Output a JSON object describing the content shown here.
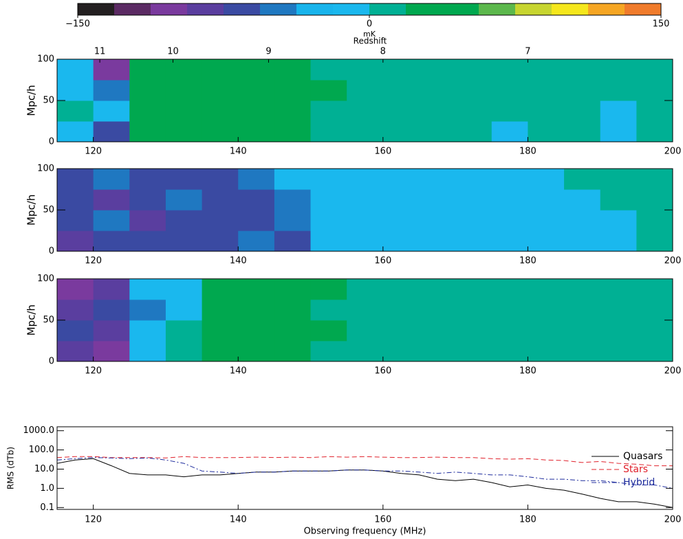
{
  "chart_data": [
    {
      "type": "colorbar",
      "label": "mK",
      "clim": [
        -150,
        150
      ],
      "ticks": [
        {
          "value": -150,
          "label": "−150"
        },
        0,
        150
      ],
      "colors": [
        "#231f20",
        "#5b2a63",
        "#7a3a9e",
        "#5a3e9f",
        "#3a4aa2",
        "#1f78c1",
        "#18b4ec",
        "#1ab8ee",
        "#00b094",
        "#00a84f",
        "#00a84f",
        "#5cb84c",
        "#c7d530",
        "#f5e71c",
        "#f6a623",
        "#f07b2b"
      ]
    },
    {
      "type": "contour",
      "ylabel": "Mpc/h",
      "redshift_label": "Redshift",
      "redshift_ticks": [
        {
          "value": 120.9,
          "label": "11"
        },
        {
          "value": 131.0,
          "label": "10"
        },
        {
          "value": 144.2,
          "label": "9"
        },
        {
          "value": 160.0,
          "label": "8"
        },
        {
          "value": 180.0,
          "label": "7"
        }
      ],
      "xlim": [
        115,
        200
      ],
      "ylim": [
        0,
        100
      ],
      "xticks": [
        120,
        140,
        160,
        180,
        200
      ],
      "yticks": [
        0,
        50,
        100
      ],
      "x_edges": [
        115,
        120,
        125,
        130,
        135,
        140,
        145,
        150,
        155,
        160,
        165,
        170,
        175,
        180,
        185,
        190,
        195,
        200
      ],
      "y_edges": [
        0,
        25,
        50,
        75,
        100
      ],
      "z": [
        [
          -15,
          -65,
          30,
          30,
          30,
          30,
          30,
          5,
          5,
          5,
          5,
          5,
          -15,
          5,
          5,
          -15,
          5
        ],
        [
          5,
          -15,
          30,
          30,
          30,
          30,
          30,
          5,
          5,
          5,
          5,
          5,
          5,
          5,
          5,
          -15,
          5
        ],
        [
          -15,
          -45,
          30,
          30,
          30,
          30,
          30,
          30,
          5,
          5,
          5,
          5,
          5,
          5,
          5,
          5,
          5
        ],
        [
          -15,
          -100,
          30,
          30,
          30,
          30,
          30,
          5,
          5,
          5,
          5,
          5,
          5,
          5,
          5,
          5,
          5
        ]
      ]
    },
    {
      "type": "contour",
      "ylabel": "Mpc/h",
      "xlim": [
        115,
        200
      ],
      "ylim": [
        0,
        100
      ],
      "xticks": [
        120,
        140,
        160,
        180,
        200
      ],
      "yticks": [
        0,
        50,
        100
      ],
      "x_edges": [
        115,
        120,
        125,
        130,
        135,
        140,
        145,
        150,
        155,
        160,
        165,
        170,
        175,
        180,
        185,
        190,
        195,
        200
      ],
      "y_edges": [
        0,
        25,
        50,
        75,
        100
      ],
      "z": [
        [
          -80,
          -65,
          -65,
          -65,
          -65,
          -45,
          -65,
          -15,
          -15,
          -15,
          -15,
          -15,
          -15,
          -15,
          -15,
          -15,
          5
        ],
        [
          -65,
          -45,
          -80,
          -65,
          -65,
          -65,
          -45,
          -15,
          -15,
          -15,
          -15,
          -15,
          -15,
          -15,
          -15,
          -15,
          5
        ],
        [
          -65,
          -80,
          -65,
          -45,
          -65,
          -65,
          -45,
          -15,
          -15,
          -15,
          -15,
          -15,
          -15,
          -15,
          -15,
          5,
          5
        ],
        [
          -65,
          -45,
          -65,
          -65,
          -65,
          -45,
          -15,
          -15,
          -15,
          -15,
          -15,
          -15,
          -15,
          -15,
          5,
          5,
          5
        ]
      ]
    },
    {
      "type": "contour",
      "ylabel": "Mpc/h",
      "xlim": [
        115,
        200
      ],
      "ylim": [
        0,
        100
      ],
      "xticks": [
        120,
        140,
        160,
        180,
        200
      ],
      "yticks": [
        0,
        50,
        100
      ],
      "x_edges": [
        115,
        120,
        125,
        130,
        135,
        140,
        145,
        150,
        155,
        160,
        165,
        170,
        175,
        180,
        185,
        190,
        195,
        200
      ],
      "y_edges": [
        0,
        25,
        50,
        75,
        100
      ],
      "z": [
        [
          -80,
          -100,
          -15,
          5,
          30,
          30,
          30,
          5,
          5,
          5,
          5,
          5,
          5,
          5,
          5,
          5,
          5
        ],
        [
          -65,
          -80,
          -15,
          5,
          30,
          30,
          30,
          30,
          5,
          5,
          5,
          5,
          5,
          5,
          5,
          5,
          5
        ],
        [
          -80,
          -65,
          -45,
          -15,
          30,
          30,
          30,
          5,
          5,
          5,
          5,
          5,
          5,
          5,
          5,
          5,
          5
        ],
        [
          -100,
          -80,
          -15,
          -15,
          30,
          30,
          30,
          30,
          5,
          5,
          5,
          5,
          5,
          5,
          5,
          5,
          5
        ]
      ]
    },
    {
      "type": "line",
      "ylabel": "RMS (dTb)",
      "xlabel": "Observing frequency (MHz)",
      "log_y": true,
      "legend": "right",
      "xlim": [
        115,
        200
      ],
      "ylim": [
        0.08,
        1600
      ],
      "xticks": [
        120,
        140,
        160,
        180,
        200
      ],
      "yticks": [
        0.1,
        {
          "value": 1,
          "label": "1.0"
        },
        {
          "value": 10,
          "label": "10.0"
        },
        {
          "value": 100,
          "label": "100.0"
        },
        {
          "value": 1000,
          "label": "1000.0"
        }
      ],
      "x": [
        115,
        117.5,
        120,
        122.5,
        125,
        127.5,
        130,
        132.5,
        135,
        137.5,
        140,
        142.5,
        145,
        147.5,
        150,
        152.5,
        155,
        157.5,
        160,
        162.5,
        165,
        167.5,
        170,
        172.5,
        175,
        177.5,
        180,
        182.5,
        185,
        187.5,
        190,
        192.5,
        195,
        197.5,
        200
      ],
      "series": [
        {
          "name": "Quasars",
          "color": "#000000",
          "linestyle": "solid",
          "values": [
            20,
            30,
            35,
            15,
            6,
            5,
            5,
            4,
            5,
            5,
            6,
            7,
            7,
            8,
            8,
            8,
            9,
            9,
            8,
            6,
            5,
            3,
            2.5,
            3,
            2,
            1.2,
            1.5,
            1,
            0.8,
            0.5,
            0.3,
            0.2,
            0.2,
            0.15,
            0.1
          ]
        },
        {
          "name": "Stars",
          "color": "#e0202a",
          "linestyle": "dashed",
          "values": [
            40,
            45,
            45,
            40,
            40,
            40,
            38,
            45,
            40,
            40,
            40,
            42,
            40,
            42,
            40,
            45,
            42,
            45,
            42,
            40,
            40,
            42,
            40,
            40,
            35,
            33,
            35,
            30,
            28,
            22,
            25,
            20,
            18,
            15,
            15
          ]
        },
        {
          "name": "Hybrid",
          "color": "#1c2a9c",
          "linestyle": "dashdot",
          "values": [
            30,
            35,
            40,
            38,
            35,
            38,
            30,
            20,
            8,
            7,
            6,
            7,
            7,
            8,
            8,
            8,
            9,
            9,
            8,
            8,
            7,
            6,
            7,
            6,
            5,
            5,
            4,
            3,
            3,
            2.5,
            2.5,
            2,
            1.5,
            1.5,
            1
          ]
        }
      ]
    }
  ]
}
